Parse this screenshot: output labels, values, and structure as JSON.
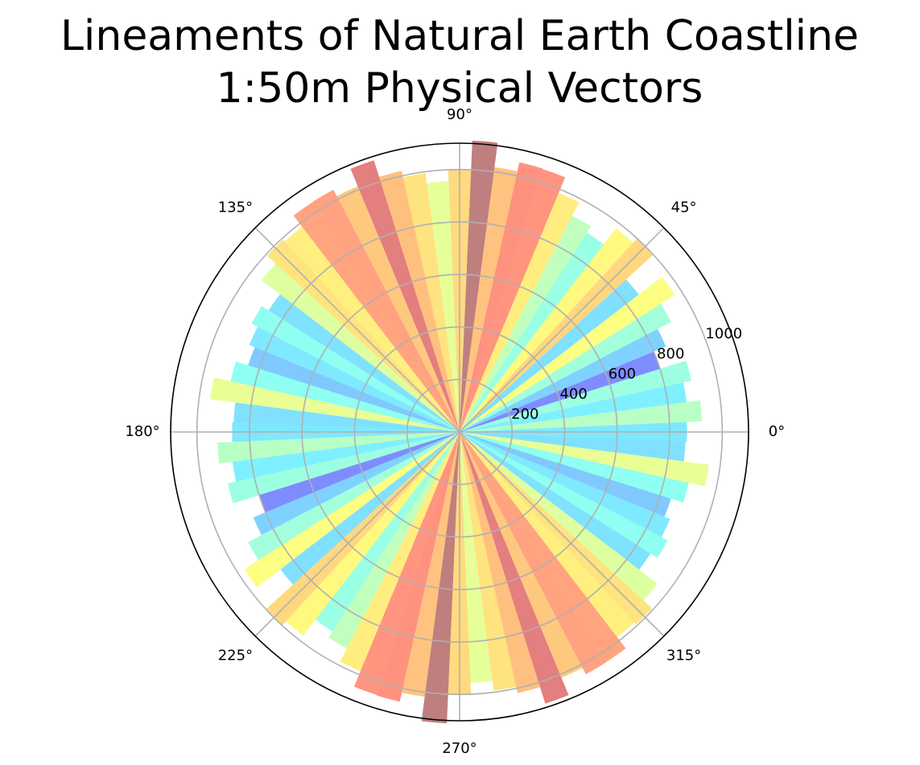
{
  "chart_data": {
    "type": "polar-bar",
    "title_line1": "Lineaments of Natural Earth Coastline",
    "title_line2": "1:50m Physical Vectors",
    "theta_tick_labels": [
      "0°",
      "45°",
      "90°",
      "135°",
      "180°",
      "225°",
      "270°",
      "315°"
    ],
    "theta_ticks_deg": [
      0,
      45,
      90,
      135,
      180,
      225,
      270,
      315
    ],
    "radial_tick_labels": [
      "200",
      "400",
      "600",
      "800",
      "1000"
    ],
    "radial_ticks": [
      200,
      400,
      600,
      800,
      1000
    ],
    "rlim": [
      0,
      1100
    ],
    "grid": true,
    "bin_width_deg": 5,
    "direction_bins_deg": [
      0,
      5,
      10,
      15,
      20,
      25,
      30,
      35,
      40,
      45,
      50,
      55,
      60,
      65,
      70,
      75,
      80,
      85,
      90,
      95,
      100,
      105,
      110,
      115,
      120,
      125,
      130,
      135,
      140,
      145,
      150,
      155,
      160,
      165,
      170,
      175
    ],
    "values": [
      866,
      923,
      872,
      904,
      800,
      850,
      908,
      972,
      860,
      1002,
      978,
      901,
      929,
      986,
      1050,
      1052,
      1017,
      1111,
      1000,
      956,
      994,
      1019,
      1085,
      1013,
      1040,
      1039,
      985,
      994,
      950,
      862,
      893,
      867,
      844,
      893,
      958,
      861
    ],
    "colormap": "jet",
    "alpha": 0.5
  }
}
